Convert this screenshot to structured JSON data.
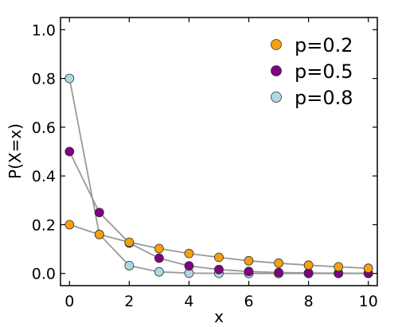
{
  "chart_data": {
    "type": "line",
    "xlabel": "x",
    "ylabel": "P(X=x)",
    "xlim": [
      -0.3,
      10.3
    ],
    "ylim": [
      -0.05,
      1.05
    ],
    "xticks": [
      0,
      2,
      4,
      6,
      8,
      10
    ],
    "yticks": [
      0.0,
      0.2,
      0.4,
      0.6,
      0.8,
      1.0
    ],
    "xtick_labels": [
      "0",
      "2",
      "4",
      "6",
      "8",
      "10"
    ],
    "ytick_labels": [
      "0.0",
      "0.2",
      "0.4",
      "0.6",
      "0.8",
      "1.0"
    ],
    "grid": false,
    "legend_position": "top-right",
    "line_color": "#999999",
    "x": [
      0,
      1,
      2,
      3,
      4,
      5,
      6,
      7,
      8,
      9,
      10
    ],
    "series": [
      {
        "name": "p=0.2",
        "color": "#f5a00f",
        "values": [
          0.2,
          0.16,
          0.128,
          0.102,
          0.082,
          0.066,
          0.052,
          0.042,
          0.034,
          0.027,
          0.021
        ]
      },
      {
        "name": "p=0.5",
        "color": "#800080",
        "values": [
          0.5,
          0.25,
          0.125,
          0.0625,
          0.031,
          0.016,
          0.008,
          0.004,
          0.002,
          0.001,
          0.0005
        ]
      },
      {
        "name": "p=0.8",
        "color": "#add8e6",
        "values": [
          0.8,
          0.16,
          0.032,
          0.0064,
          0.0013,
          0.0003,
          0.0001,
          0.0,
          0.0,
          0.0,
          0.0
        ]
      }
    ]
  }
}
